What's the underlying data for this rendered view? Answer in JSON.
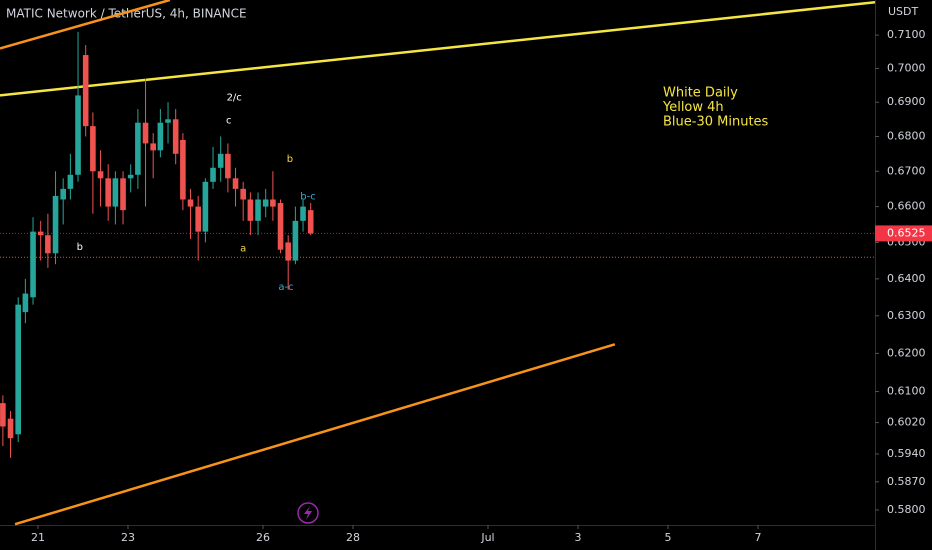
{
  "chart_data": {
    "type": "candlestick",
    "title": "MATIC Network / TetherUS, 4h, BINANCE",
    "y_axis_label": "USDT",
    "log_scale": true,
    "up_color": "#26a69a",
    "down_color": "#ef5350",
    "x": [
      20.22,
      20.39,
      20.56,
      20.72,
      20.89,
      21.06,
      21.22,
      21.39,
      21.56,
      21.72,
      21.89,
      22.06,
      22.22,
      22.39,
      22.56,
      22.72,
      22.89,
      23.06,
      23.22,
      23.39,
      23.56,
      23.72,
      23.89,
      24.06,
      24.22,
      24.39,
      24.56,
      24.72,
      24.89,
      25.06,
      25.22,
      25.39,
      25.56,
      25.72,
      25.89,
      26.06,
      26.22,
      26.39,
      26.56,
      26.72,
      26.89,
      27.06
    ],
    "open": [
      0.607,
      0.603,
      0.599,
      0.631,
      0.635,
      0.653,
      0.652,
      0.647,
      0.662,
      0.665,
      0.669,
      0.704,
      0.683,
      0.67,
      0.668,
      0.66,
      0.668,
      0.668,
      0.669,
      0.684,
      0.678,
      0.676,
      0.684,
      0.685,
      0.679,
      0.662,
      0.66,
      0.653,
      0.667,
      0.671,
      0.675,
      0.668,
      0.665,
      0.662,
      0.656,
      0.66,
      0.662,
      0.661,
      0.65,
      0.645,
      0.656,
      0.659
    ],
    "high": [
      0.609,
      0.605,
      0.635,
      0.64,
      0.657,
      0.656,
      0.658,
      0.67,
      0.668,
      0.675,
      0.711,
      0.707,
      0.687,
      0.676,
      0.672,
      0.67,
      0.67,
      0.672,
      0.688,
      0.697,
      0.681,
      0.688,
      0.69,
      0.688,
      0.681,
      0.665,
      0.663,
      0.668,
      0.677,
      0.68,
      0.678,
      0.671,
      0.667,
      0.664,
      0.664,
      0.665,
      0.67,
      0.662,
      0.652,
      0.66,
      0.662,
      0.661
    ],
    "low": [
      0.596,
      0.593,
      0.597,
      0.628,
      0.633,
      0.645,
      0.643,
      0.644,
      0.655,
      0.662,
      0.667,
      0.68,
      0.658,
      0.66,
      0.656,
      0.655,
      0.655,
      0.664,
      0.665,
      0.66,
      0.668,
      0.674,
      0.678,
      0.672,
      0.659,
      0.651,
      0.645,
      0.65,
      0.665,
      0.667,
      0.664,
      0.66,
      0.656,
      0.652,
      0.652,
      0.657,
      0.656,
      0.647,
      0.637,
      0.644,
      0.653,
      0.652
    ],
    "close": [
      0.601,
      0.598,
      0.633,
      0.636,
      0.653,
      0.652,
      0.647,
      0.663,
      0.665,
      0.669,
      0.692,
      0.683,
      0.67,
      0.668,
      0.66,
      0.668,
      0.659,
      0.669,
      0.684,
      0.678,
      0.676,
      0.684,
      0.685,
      0.675,
      0.662,
      0.66,
      0.653,
      0.667,
      0.671,
      0.675,
      0.668,
      0.665,
      0.662,
      0.656,
      0.662,
      0.662,
      0.66,
      0.648,
      0.645,
      0.656,
      0.66,
      0.6525
    ],
    "xlim": [
      20.156,
      39.6
    ],
    "ylim": [
      0.5763,
      0.7207
    ],
    "xticks": [
      21,
      23,
      26,
      28,
      {
        "value": 31,
        "label": "Jul"
      },
      {
        "value": 33,
        "label": "3"
      },
      {
        "value": 35,
        "label": "5"
      },
      {
        "value": 37,
        "label": "7"
      }
    ],
    "yticks": [
      {
        "value": 0.71,
        "label": "0.7100"
      },
      {
        "value": 0.7,
        "label": "0.7000"
      },
      {
        "value": 0.69,
        "label": "0.6900"
      },
      {
        "value": 0.68,
        "label": "0.6800"
      },
      {
        "value": 0.67,
        "label": "0.6700"
      },
      {
        "value": 0.66,
        "label": "0.6600"
      },
      {
        "value": 0.65,
        "label": "0.6500"
      },
      {
        "value": 0.64,
        "label": "0.6400"
      },
      {
        "value": 0.63,
        "label": "0.6300"
      },
      {
        "value": 0.62,
        "label": "0.6200"
      },
      {
        "value": 0.61,
        "label": "0.6100"
      },
      {
        "value": 0.602,
        "label": "0.6020"
      },
      {
        "value": 0.594,
        "label": "0.5940"
      },
      {
        "value": 0.587,
        "label": "0.5870"
      },
      {
        "value": 0.58,
        "label": "0.5800"
      }
    ],
    "last_price": {
      "value": 0.6525,
      "label": "0.6525",
      "color": "#f23645"
    },
    "levels": [
      {
        "value": 0.6459,
        "color": "#b2643a"
      }
    ],
    "trendlines": [
      {
        "color": "#f7931a",
        "x": [
          20.156,
          23.93
        ],
        "y": [
          0.706,
          0.7207
        ]
      },
      {
        "color": "#f5e642",
        "x": [
          20.156,
          39.6
        ],
        "y": [
          0.692,
          0.72
        ]
      },
      {
        "color": "#f7931a",
        "x": [
          20.49,
          33.82
        ],
        "y": [
          0.5765,
          0.6224
        ]
      }
    ],
    "annotations": [
      {
        "text": "2/c",
        "x": 25.36,
        "y": 0.6914,
        "color": "#ffffff"
      },
      {
        "text": "c",
        "x": 25.24,
        "y": 0.6846,
        "color": "#ffffff"
      },
      {
        "text": "b",
        "x": 26.6,
        "y": 0.6735,
        "color": "#f5d742"
      },
      {
        "text": "b",
        "x": 21.93,
        "y": 0.6488,
        "color": "#ffffff"
      },
      {
        "text": "a",
        "x": 25.56,
        "y": 0.6483,
        "color": "#f5d742"
      },
      {
        "text": "b-c",
        "x": 27.0,
        "y": 0.6629,
        "color": "#3fa9d6"
      },
      {
        "text": "a-c",
        "x": 26.51,
        "y": 0.6378,
        "color": "#3fa9d6"
      }
    ],
    "note": [
      "White Daily",
      "Yellow 4h",
      "Blue-30 Minutes"
    ],
    "note_color": "#f5e642"
  }
}
